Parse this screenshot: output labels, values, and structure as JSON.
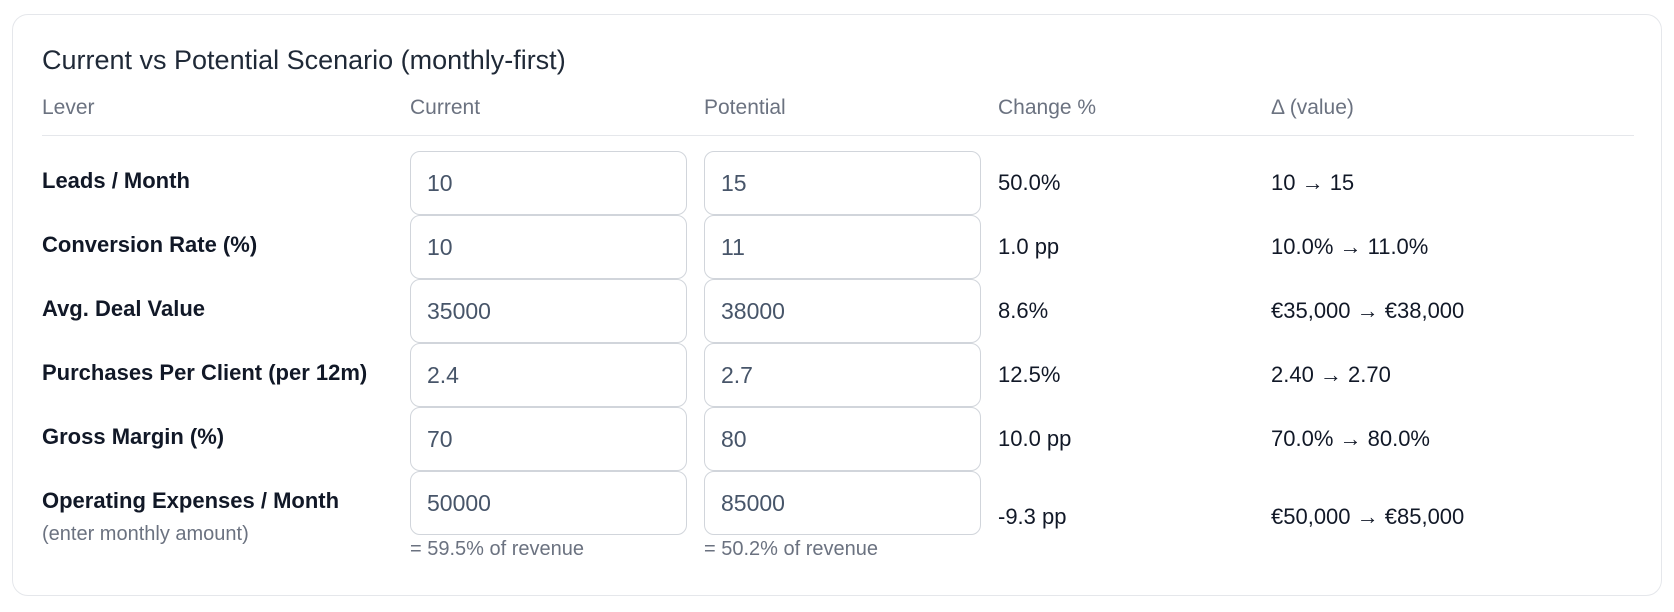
{
  "title": "Current vs Potential Scenario (monthly-first)",
  "columns": {
    "lever": "Lever",
    "current": "Current",
    "potential": "Potential",
    "change": "Change %",
    "delta": "Δ (value)"
  },
  "rows": [
    {
      "lever": "Leads / Month",
      "current": "10",
      "potential": "15",
      "change": "50.0%",
      "delta": "10 → 15"
    },
    {
      "lever": "Conversion Rate (%)",
      "current": "10",
      "potential": "11",
      "change": "1.0 pp",
      "delta": "10.0% → 11.0%"
    },
    {
      "lever": "Avg. Deal Value",
      "current": "35000",
      "potential": "38000",
      "change": "8.6%",
      "delta": "€35,000 → €38,000"
    },
    {
      "lever": "Purchases Per Client (per 12m)",
      "current": "2.4",
      "potential": "2.7",
      "change": "12.5%",
      "delta": "2.40 → 2.70"
    },
    {
      "lever": "Gross Margin (%)",
      "current": "70",
      "potential": "80",
      "change": "10.0 pp",
      "delta": "70.0% → 80.0%"
    },
    {
      "lever": "Operating Expenses / Month",
      "note": "(enter monthly amount)",
      "current": "50000",
      "potential": "85000",
      "current_hint": "= 59.5% of revenue",
      "potential_hint": "= 50.2% of revenue",
      "change": "-9.3 pp",
      "delta": "€50,000 → €85,000"
    }
  ]
}
